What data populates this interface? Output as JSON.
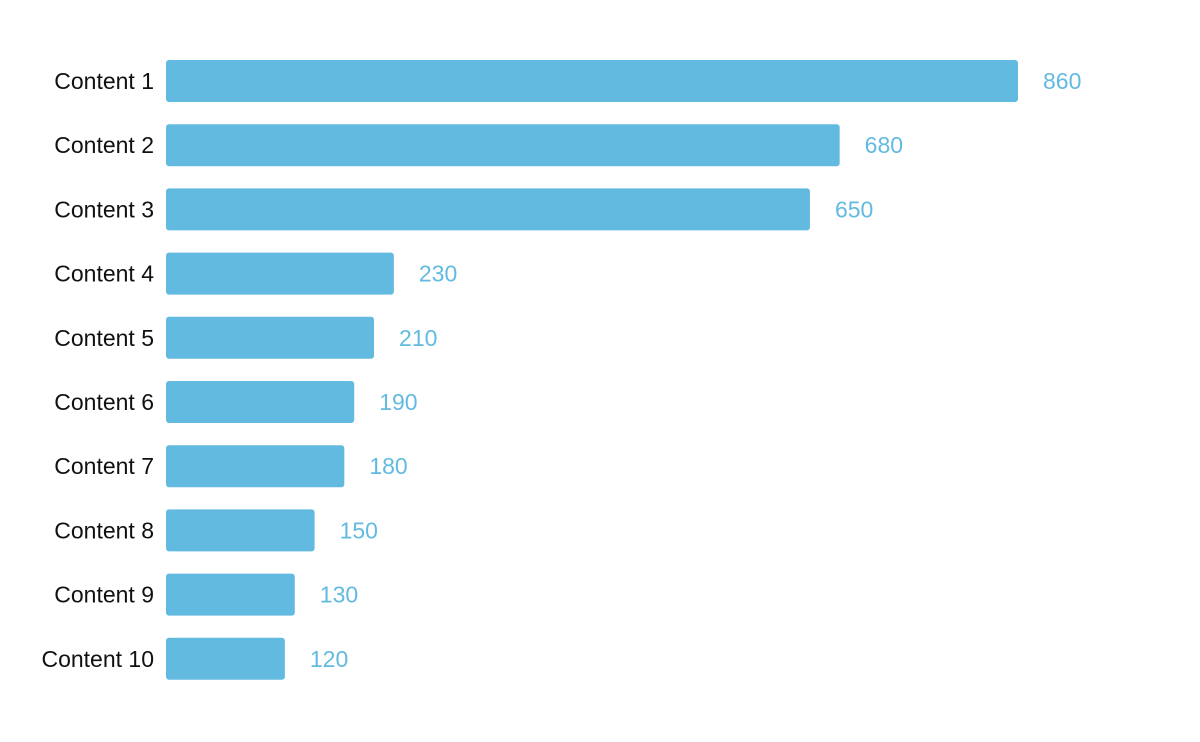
{
  "chart_data": {
    "type": "bar",
    "orientation": "horizontal",
    "categories": [
      "Content 1",
      "Content 2",
      "Content 3",
      "Content 4",
      "Content 5",
      "Content 6",
      "Content 7",
      "Content 8",
      "Content 9",
      "Content 10"
    ],
    "values": [
      860,
      680,
      650,
      230,
      210,
      190,
      180,
      150,
      130,
      120
    ],
    "title": "",
    "xlabel": "",
    "ylabel": "",
    "grid": false,
    "legend": "none",
    "bar_color": "#63BAE1",
    "value_label_color": "#63BAE1",
    "category_label_color": "#111111"
  }
}
